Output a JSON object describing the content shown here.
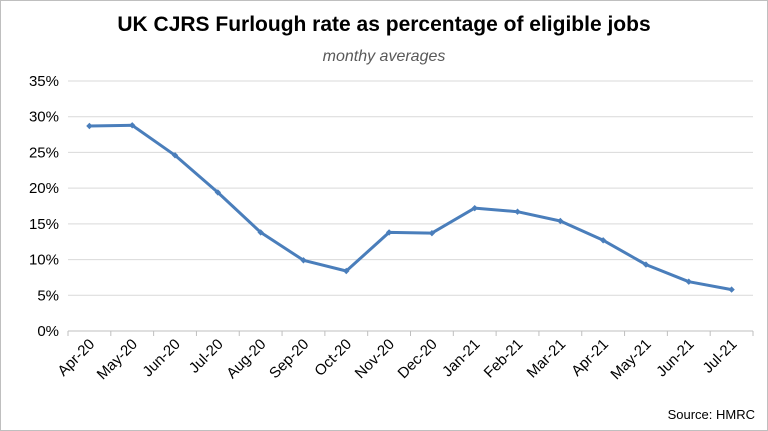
{
  "chart_data": {
    "type": "line",
    "title": "UK CJRS Furlough rate as percentage of eligible jobs",
    "subtitle": "monthy averages",
    "source": "Source: HMRC",
    "xlabel": "",
    "ylabel": "",
    "categories": [
      "Apr-20",
      "May-20",
      "Jun-20",
      "Jul-20",
      "Aug-20",
      "Sep-20",
      "Oct-20",
      "Nov-20",
      "Dec-20",
      "Jan-21",
      "Feb-21",
      "Mar-21",
      "Apr-21",
      "May-21",
      "Jun-21",
      "Jul-21"
    ],
    "series": [
      {
        "name": "",
        "values": [
          28.7,
          28.8,
          24.6,
          19.4,
          13.8,
          9.9,
          8.4,
          13.8,
          13.7,
          17.2,
          16.7,
          15.4,
          12.7,
          9.3,
          6.9,
          5.8
        ]
      }
    ],
    "ylim": [
      0,
      35
    ],
    "yticks": [
      0,
      5,
      10,
      15,
      20,
      25,
      30,
      35
    ],
    "ytick_labels": [
      "0%",
      "5%",
      "10%",
      "15%",
      "20%",
      "25%",
      "30%",
      "35%"
    ],
    "grid": true,
    "legend": "none",
    "line_color": "#4a7ebb"
  }
}
